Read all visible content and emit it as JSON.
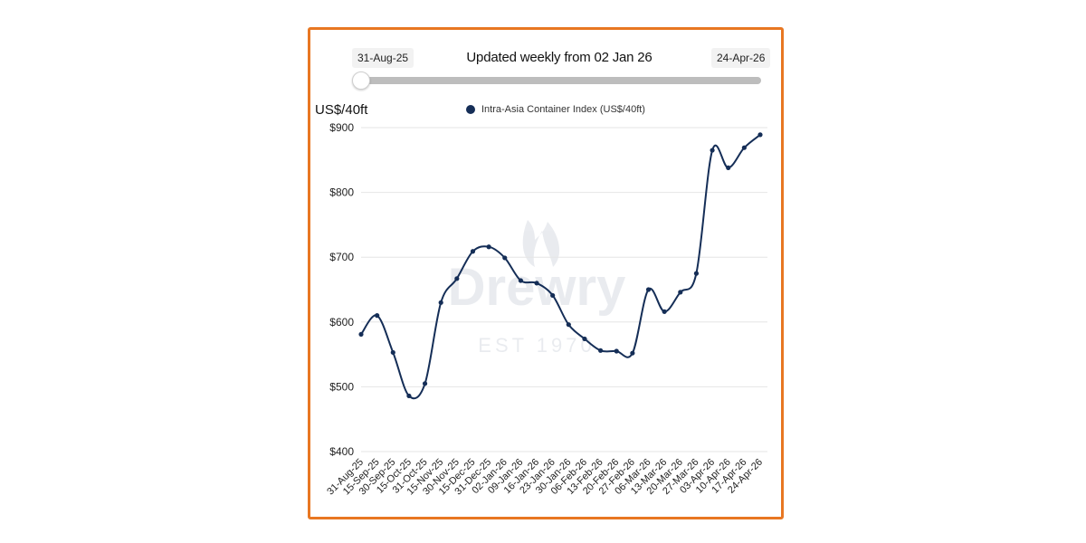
{
  "slider": {
    "start_date": "31-Aug-25",
    "end_date": "24-Apr-26",
    "title": "Updated weekly from 02 Jan 26",
    "position": 0
  },
  "watermark": {
    "brand": "Drewry",
    "established": "EST 1970"
  },
  "colors": {
    "border": "#e87722",
    "series": "#152e57",
    "grid": "#e6e6e6",
    "track": "#bdbdbd"
  },
  "chart_data": {
    "type": "line",
    "ylabel": "US$/40ft",
    "ylim": [
      400,
      900
    ],
    "yticks": [
      400,
      500,
      600,
      700,
      800,
      900
    ],
    "ytick_labels": [
      "$400",
      "$500",
      "$600",
      "$700",
      "$800",
      "$900"
    ],
    "grid": true,
    "legend_position": "top-center",
    "categories": [
      "31-Aug-25",
      "15-Sep-25",
      "30-Sep-25",
      "15-Oct-25",
      "31-Oct-25",
      "15-Nov-25",
      "30-Nov-25",
      "15-Dec-25",
      "31-Dec-25",
      "02-Jan-26",
      "09-Jan-26",
      "16-Jan-26",
      "23-Jan-26",
      "30-Jan-26",
      "06-Feb-26",
      "13-Feb-26",
      "20-Feb-26",
      "27-Feb-26",
      "06-Mar-26",
      "13-Mar-26",
      "20-Mar-26",
      "27-Mar-26",
      "03-Apr-26",
      "10-Apr-26",
      "17-Apr-26",
      "24-Apr-26"
    ],
    "series": [
      {
        "name": "Intra-Asia Container Index (US$/40ft)",
        "values": [
          581,
          610,
          553,
          486,
          505,
          630,
          667,
          709,
          716,
          699,
          664,
          660,
          641,
          596,
          574,
          556,
          555,
          552,
          650,
          616,
          646,
          675,
          865,
          838,
          869,
          889
        ]
      }
    ]
  }
}
